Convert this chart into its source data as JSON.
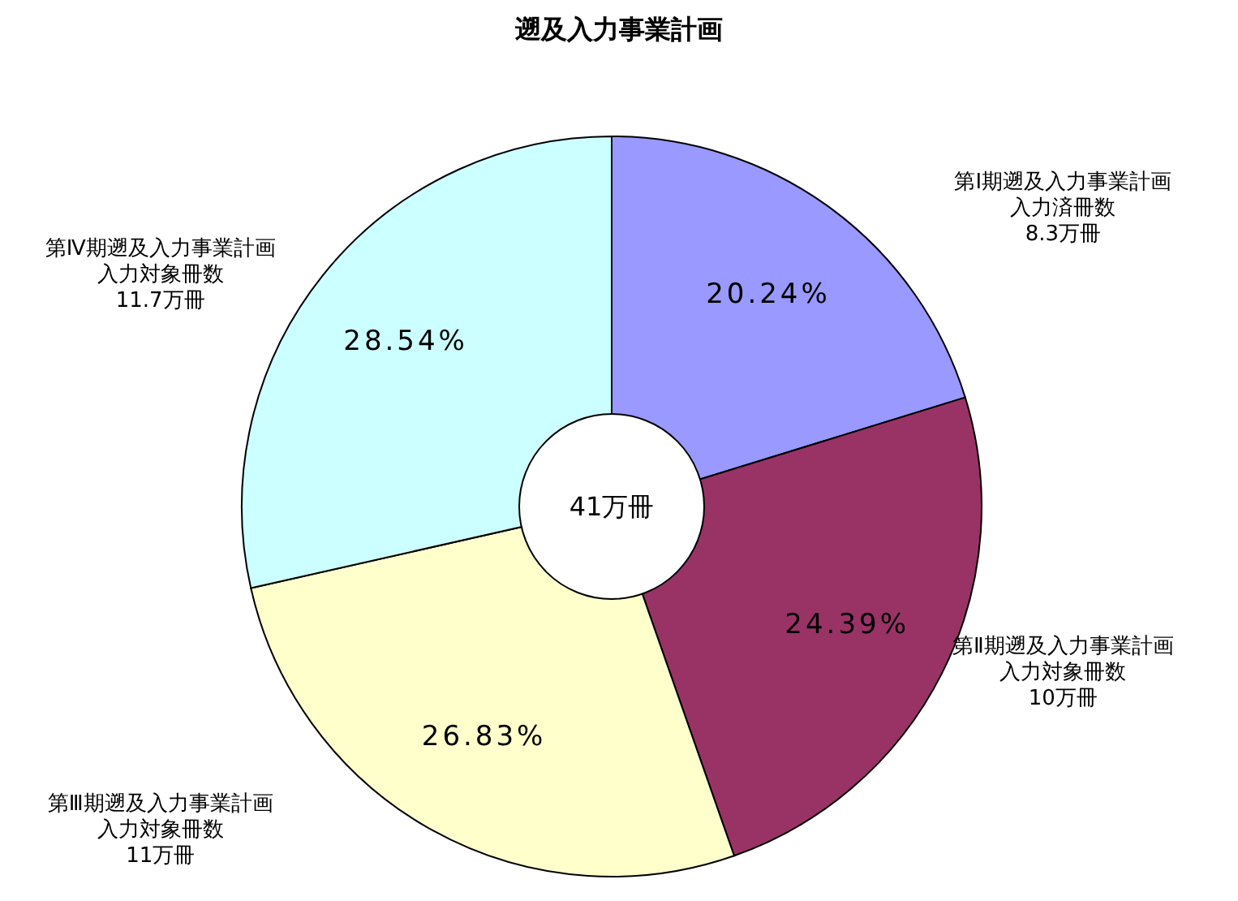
{
  "chart_data": {
    "type": "donut",
    "title": "遡及入力事業計画",
    "categories": [
      "第Ⅰ期遡及入力事業計画入力済冊数",
      "第Ⅱ期遡及入力事業計画入力対象冊数",
      "第Ⅲ期遡及入力事業計画入力対象冊数",
      "第Ⅳ期遡及入力事業計画入力対象冊数"
    ],
    "values": [
      20.24,
      24.39,
      26.83,
      28.54
    ],
    "value_labels": [
      "20.24%",
      "24.39%",
      "26.83%",
      "28.54%"
    ],
    "colors": [
      "#9999ff",
      "#993366",
      "#ffffcc",
      "#ccffff"
    ],
    "annotations": [
      "41万冊",
      "8.3万冊",
      "10万冊",
      "11万冊",
      "11.7万冊"
    ]
  }
}
